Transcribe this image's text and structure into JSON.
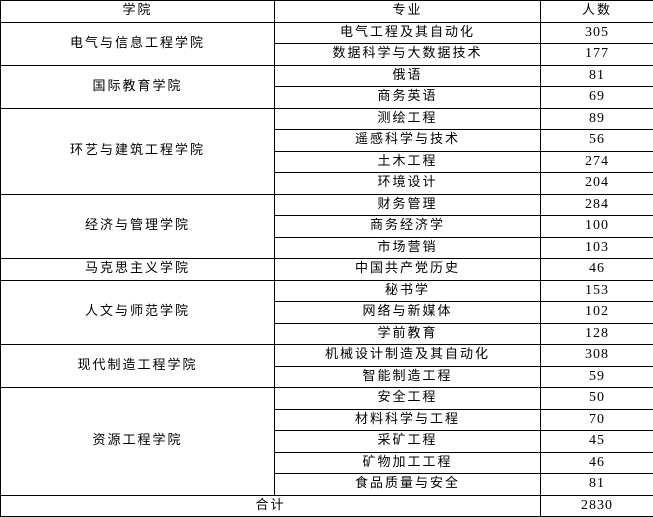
{
  "header": {
    "college": "学院",
    "major": "专业",
    "count": "人数"
  },
  "colleges": [
    {
      "name": "电气与信息工程学院",
      "majors": [
        {
          "name": "电气工程及其自动化",
          "count": 305
        },
        {
          "name": "数据科学与大数据技术",
          "count": 177
        }
      ]
    },
    {
      "name": "国际教育学院",
      "majors": [
        {
          "name": "俄语",
          "count": 81
        },
        {
          "name": "商务英语",
          "count": 69
        }
      ]
    },
    {
      "name": "环艺与建筑工程学院",
      "majors": [
        {
          "name": "测绘工程",
          "count": 89
        },
        {
          "name": "遥感科学与技术",
          "count": 56
        },
        {
          "name": "土木工程",
          "count": 274
        },
        {
          "name": "环境设计",
          "count": 204
        }
      ]
    },
    {
      "name": "经济与管理学院",
      "majors": [
        {
          "name": "财务管理",
          "count": 284
        },
        {
          "name": "商务经济学",
          "count": 100
        },
        {
          "name": "市场营销",
          "count": 103
        }
      ]
    },
    {
      "name": "马克思主义学院",
      "majors": [
        {
          "name": "中国共产党历史",
          "count": 46
        }
      ]
    },
    {
      "name": "人文与师范学院",
      "majors": [
        {
          "name": "秘书学",
          "count": 153
        },
        {
          "name": "网络与新媒体",
          "count": 102
        },
        {
          "name": "学前教育",
          "count": 128
        }
      ]
    },
    {
      "name": "现代制造工程学院",
      "majors": [
        {
          "name": "机械设计制造及其自动化",
          "count": 308
        },
        {
          "name": "智能制造工程",
          "count": 59
        }
      ]
    },
    {
      "name": "资源工程学院",
      "majors": [
        {
          "name": "安全工程",
          "count": 50
        },
        {
          "name": "材料科学与工程",
          "count": 70
        },
        {
          "name": "采矿工程",
          "count": 45
        },
        {
          "name": "矿物加工工程",
          "count": 46
        },
        {
          "name": "食品质量与安全",
          "count": 81
        }
      ]
    }
  ],
  "total": {
    "label": "合计",
    "count": 2830
  }
}
